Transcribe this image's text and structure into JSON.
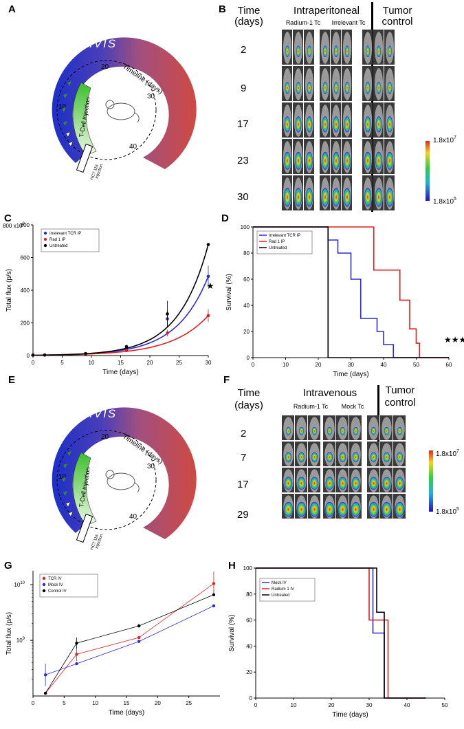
{
  "colors": {
    "blue": "#2a2ad8",
    "red": "#e02020",
    "black": "#000000",
    "ivis_start": "#2b3ccf",
    "ivis_end": "#cf4a42",
    "green": "#4cc33a",
    "mouse_bg": "#3a3a3a"
  },
  "panels": {
    "A": {
      "letter": "A",
      "ivis": "IVIS",
      "timeline": "Timeline (days)",
      "ticks": [
        "10",
        "20",
        "30",
        "40"
      ],
      "tcell": "T-Cell injection",
      "hct": "HCT 116",
      "hct2": "injection"
    },
    "B": {
      "letter": "B",
      "time_label": "Time",
      "days_label": "(days)",
      "route": "Intraperitoneal",
      "group1": "Radium-1 Tc",
      "group2": "Irrelevant Tc",
      "control1": "Tumor",
      "control2": "control",
      "times": [
        "2",
        "9",
        "17",
        "23",
        "30"
      ],
      "scale_max": "1.8x10",
      "scale_max_exp": "7",
      "scale_min": "1.8x10",
      "scale_min_exp": "5"
    },
    "C": {
      "letter": "C",
      "star": "★"
    },
    "D": {
      "letter": "D",
      "stars": "★★★"
    },
    "E": {
      "letter": "E",
      "ivis": "IVIS",
      "timeline": "Timeline (days)",
      "ticks": [
        "10",
        "20",
        "30",
        "40"
      ],
      "tcell": "T-Cell injection",
      "hct": "HCT 116",
      "hct2": "injection"
    },
    "F": {
      "letter": "F",
      "time_label": "Time",
      "days_label": "(days)",
      "route": "Intravenous",
      "group1": "Radium-1 Tc",
      "group2": "Mock Tc",
      "control1": "Tumor",
      "control2": "control",
      "times": [
        "2",
        "7",
        "17",
        "29"
      ],
      "scale_max": "1.8x10",
      "scale_max_exp": "7",
      "scale_min": "1.8x10",
      "scale_min_exp": "5"
    },
    "G": {
      "letter": "G"
    },
    "H": {
      "letter": "H"
    }
  },
  "chart_data": [
    {
      "id": "C",
      "type": "line",
      "title": "",
      "xlabel": "Time (days)",
      "ylabel": "Total flux (p/s)",
      "xlim": [
        0,
        30
      ],
      "ylim": [
        0,
        800
      ],
      "xticks": [
        "0",
        "5",
        "10",
        "15",
        "20",
        "25",
        "30"
      ],
      "yticks": [
        "0",
        "200",
        "400",
        "600",
        "800"
      ],
      "y_multiplier": "x10",
      "y_multiplier_exp": "9",
      "series": [
        {
          "name": "Irrelevant TCR IP",
          "color": "#2a2ad8",
          "points": [
            [
              0,
              2
            ],
            [
              2,
              3
            ],
            [
              9,
              12
            ],
            [
              16,
              48
            ],
            [
              23,
              225
            ],
            [
              30,
              485
            ]
          ],
          "err": [
            0,
            0,
            0,
            8,
            50,
            65
          ]
        },
        {
          "name": "Rad 1 IP",
          "color": "#e02020",
          "points": [
            [
              0,
              2
            ],
            [
              2,
              3
            ],
            [
              9,
              10
            ],
            [
              16,
              30
            ],
            [
              23,
              138
            ],
            [
              30,
              245
            ]
          ],
          "err": [
            0,
            0,
            0,
            6,
            20,
            40
          ]
        },
        {
          "name": "Untreated",
          "color": "#000000",
          "points": [
            [
              0,
              3
            ],
            [
              2,
              3
            ],
            [
              9,
              12
            ],
            [
              16,
              55
            ],
            [
              23,
              255
            ],
            [
              30,
              680
            ]
          ],
          "err": [
            0,
            0,
            0,
            8,
            80,
            0
          ]
        }
      ]
    },
    {
      "id": "D",
      "type": "line",
      "title": "",
      "xlabel": "Time (days)",
      "ylabel": "Survival (%)",
      "xlim": [
        0,
        60
      ],
      "ylim": [
        0,
        100
      ],
      "xticks": [
        "0",
        "10",
        "20",
        "30",
        "40",
        "50",
        "60"
      ],
      "yticks": [
        "0",
        "20",
        "40",
        "60",
        "80",
        "100"
      ],
      "series": [
        {
          "name": "Irrelevant TCR IP",
          "color": "#2a2ad8",
          "steps": [
            [
              0,
              100
            ],
            [
              23,
              90
            ],
            [
              26,
              80
            ],
            [
              30,
              60
            ],
            [
              33,
              30
            ],
            [
              38,
              20
            ],
            [
              40,
              10
            ],
            [
              43,
              0
            ],
            [
              60,
              0
            ]
          ]
        },
        {
          "name": "Rad 1 IP",
          "color": "#e02020",
          "steps": [
            [
              0,
              100
            ],
            [
              37,
              67
            ],
            [
              45,
              44
            ],
            [
              48,
              22
            ],
            [
              50,
              11
            ],
            [
              51,
              0
            ],
            [
              60,
              0
            ]
          ]
        },
        {
          "name": "Untreated",
          "color": "#000000",
          "steps": [
            [
              0,
              100
            ],
            [
              23,
              0
            ],
            [
              60,
              0
            ]
          ]
        }
      ]
    },
    {
      "id": "G",
      "type": "line",
      "title": "",
      "xlabel": "Time (days)",
      "ylabel": "Total flux (p/s)",
      "xlim": [
        0,
        30
      ],
      "ylog": [
        8,
        10.25
      ],
      "xticks": [
        "0",
        "5",
        "10",
        "15",
        "20",
        "25"
      ],
      "yticks": [
        {
          "base": "10",
          "exp": "9",
          "value": 9
        },
        {
          "base": "10",
          "exp": "10",
          "value": 10
        }
      ],
      "series": [
        {
          "name": "TCR IV",
          "color": "#e02020",
          "points": [
            [
              2,
              8.05
            ],
            [
              7,
              8.75
            ],
            [
              17,
              9.05
            ],
            [
              29,
              10.02
            ]
          ],
          "err": [
            0,
            0.12,
            0,
            0.22
          ]
        },
        {
          "name": "Mock IV",
          "color": "#2a2ad8",
          "points": [
            [
              2,
              8.38
            ],
            [
              7,
              8.58
            ],
            [
              17,
              8.98
            ],
            [
              29,
              9.62
            ]
          ],
          "err": [
            0.2,
            0,
            0,
            0
          ]
        },
        {
          "name": "Control IV",
          "color": "#000000",
          "points": [
            [
              2,
              8.05
            ],
            [
              7,
              8.95
            ],
            [
              17,
              9.26
            ],
            [
              29,
              9.82
            ]
          ],
          "err": [
            0,
            0.1,
            0.03,
            0
          ]
        }
      ]
    },
    {
      "id": "H",
      "type": "line",
      "title": "",
      "xlabel": "Time (days)",
      "ylabel": "Survival (%)",
      "xlim": [
        0,
        50
      ],
      "ylim": [
        0,
        100
      ],
      "xticks": [
        "0",
        "10",
        "20",
        "30",
        "40",
        "50"
      ],
      "yticks": [
        "0",
        "20",
        "40",
        "60",
        "80",
        "100"
      ],
      "series": [
        {
          "name": "Mock IV",
          "color": "#2a2ad8",
          "steps": [
            [
              0,
              100
            ],
            [
              31,
              50
            ],
            [
              34,
              0
            ],
            [
              45,
              0
            ]
          ]
        },
        {
          "name": "Radium 1 IV",
          "color": "#e02020",
          "steps": [
            [
              0,
              100
            ],
            [
              30,
              60
            ],
            [
              35,
              0
            ],
            [
              45,
              0
            ]
          ]
        },
        {
          "name": "Untreated",
          "color": "#000000",
          "steps": [
            [
              0,
              100
            ],
            [
              32,
              66
            ],
            [
              34,
              0
            ],
            [
              45,
              0
            ]
          ]
        }
      ]
    }
  ]
}
